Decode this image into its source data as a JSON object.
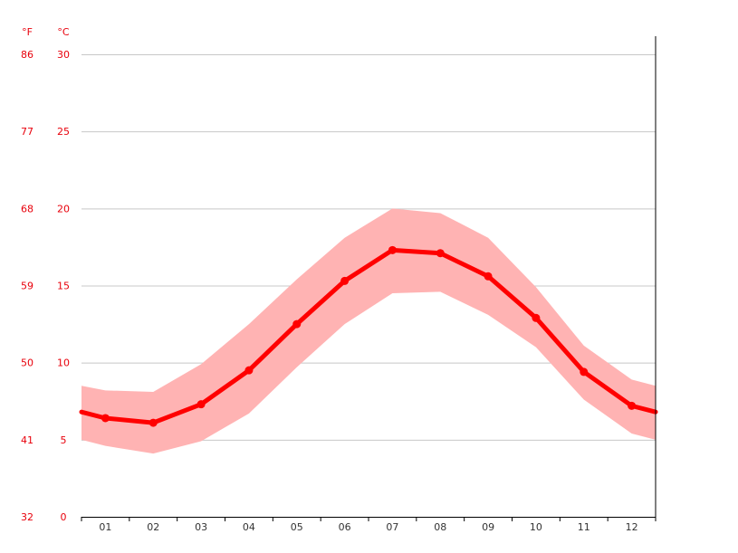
{
  "chart_data": {
    "type": "line",
    "units": {
      "f": "°F",
      "c": "°C"
    },
    "x": [
      "01",
      "02",
      "03",
      "04",
      "05",
      "06",
      "07",
      "08",
      "09",
      "10",
      "11",
      "12"
    ],
    "ylim": [
      0,
      30
    ],
    "y_ticks_c": [
      "0",
      "5",
      "10",
      "15",
      "20",
      "25",
      "30"
    ],
    "y_ticks_f": [
      "32",
      "41",
      "50",
      "59",
      "68",
      "77",
      "86"
    ],
    "grid": true,
    "series": [
      {
        "values": [
          6.4,
          6.1,
          7.3,
          9.5,
          12.5,
          15.3,
          17.3,
          17.1,
          15.6,
          12.9,
          9.4,
          7.2
        ]
      }
    ],
    "band": {
      "upper": [
        8.2,
        8.1,
        9.9,
        12.5,
        15.4,
        18.1,
        20.0,
        19.7,
        18.1,
        14.9,
        11.1,
        8.9
      ],
      "lower": [
        4.6,
        4.1,
        4.9,
        6.7,
        9.7,
        12.5,
        14.5,
        14.6,
        13.1,
        11.0,
        7.6,
        5.4
      ]
    },
    "edge_values": {
      "line": [
        6.8,
        6.8
      ],
      "upper": [
        8.5,
        8.5
      ],
      "lower": [
        5.0,
        5.0
      ]
    },
    "colors": {
      "line": "#ff0000",
      "band": "#ffb3b3",
      "grid": "#c8c8c8",
      "labels": "#e8000b",
      "axis": "#000000"
    }
  }
}
